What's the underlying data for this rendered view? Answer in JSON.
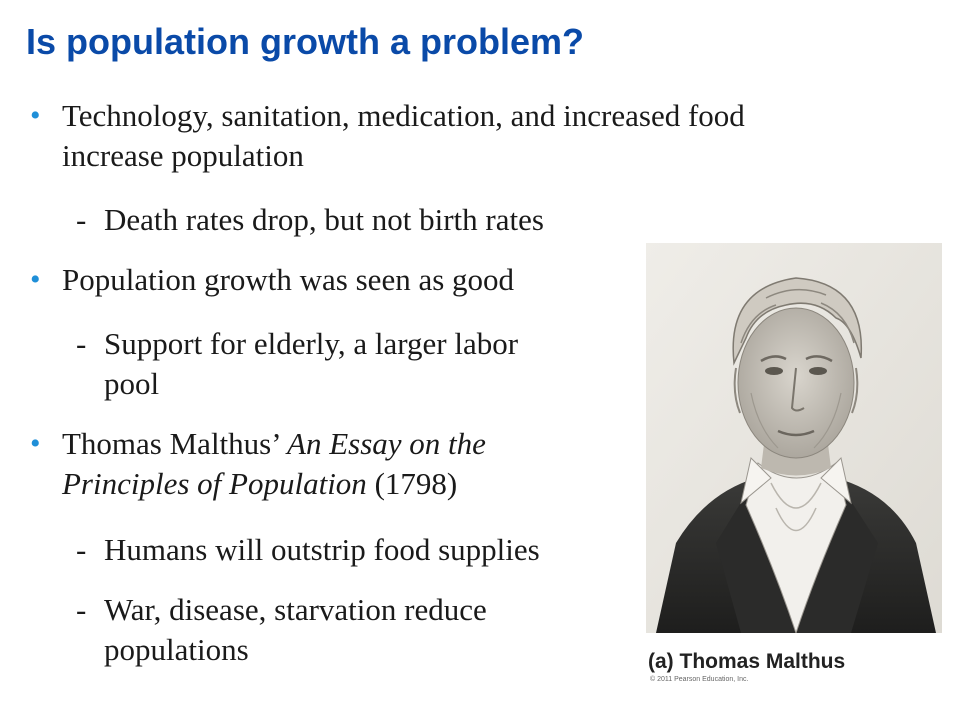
{
  "title": "Is population growth a problem?",
  "bullets": [
    {
      "text_lines": [
        "Technology, sanitation, medication, and increased food",
        "increase population"
      ],
      "subs": [
        {
          "lines": [
            "Death rates drop, but not birth rates"
          ]
        }
      ]
    },
    {
      "text_lines": [
        "Population growth was seen as good"
      ],
      "subs": [
        {
          "lines": [
            "Support for elderly, a larger labor",
            "pool"
          ]
        }
      ]
    },
    {
      "pre": "Thomas Malthus’ ",
      "italic1": "An Essay on the",
      "italic2": "Principles of Population",
      "post": " (1798)",
      "subs": [
        {
          "lines": [
            "Humans will outstrip food supplies"
          ]
        },
        {
          "lines": [
            "War, disease, starvation reduce",
            "populations"
          ]
        }
      ]
    }
  ],
  "bullet_mark": "•",
  "sub_mark": "-",
  "figure": {
    "caption": "(a) Thomas Malthus",
    "copyright": "© 2011 Pearson Education, Inc."
  },
  "colors": {
    "title": "#0a4aa8",
    "bullet": "#1f8fd8"
  }
}
